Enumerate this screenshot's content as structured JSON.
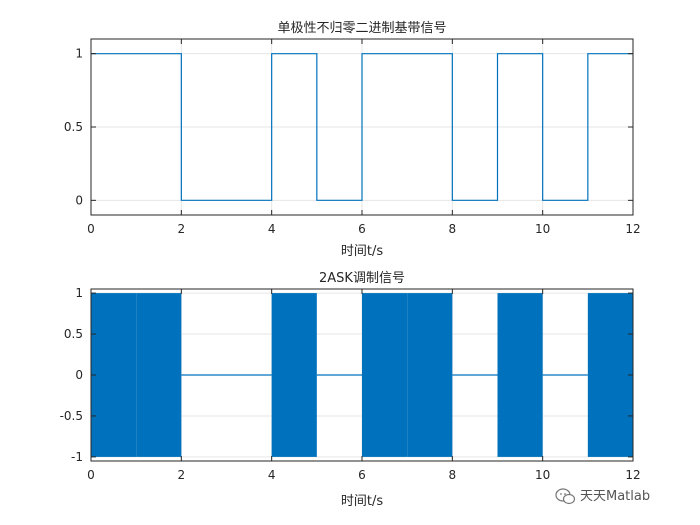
{
  "chart_data": [
    {
      "type": "line",
      "title": "单极性不归零二进制基带信号",
      "xlabel": "时间t/s",
      "ylabel": "",
      "xlim": [
        0,
        12
      ],
      "ylim": [
        -0.1,
        1.1
      ],
      "xticks": [
        0,
        2,
        4,
        6,
        8,
        10,
        12
      ],
      "xtick_labels": [
        "0",
        "2",
        "4",
        "6",
        "8",
        "10",
        "12"
      ],
      "yticks": [
        0,
        0.5,
        1
      ],
      "ytick_labels": [
        "0",
        "0.5",
        "1"
      ],
      "grid": true,
      "line_color": "#0072BD",
      "bits": [
        1,
        1,
        0,
        0,
        1,
        0,
        1,
        1,
        0,
        1,
        0,
        1
      ],
      "x": [
        0,
        2,
        2,
        4,
        4,
        5,
        5,
        6,
        6,
        8,
        8,
        9,
        9,
        10,
        10,
        11,
        11,
        12
      ],
      "y": [
        1,
        1,
        0,
        0,
        1,
        1,
        0,
        0,
        1,
        1,
        0,
        0,
        1,
        1,
        0,
        0,
        1,
        1
      ]
    },
    {
      "type": "area",
      "title": "2ASK调制信号",
      "xlabel": "时间t/s",
      "ylabel": "",
      "xlim": [
        0,
        12
      ],
      "ylim": [
        -1.05,
        1.05
      ],
      "xticks": [
        0,
        2,
        4,
        6,
        8,
        10,
        12
      ],
      "xtick_labels": [
        "0",
        "2",
        "4",
        "6",
        "8",
        "10",
        "12"
      ],
      "yticks": [
        -1,
        -0.5,
        0,
        0.5,
        1
      ],
      "ytick_labels": [
        "-1",
        "-0.5",
        "0",
        "0.5",
        "1"
      ],
      "grid": true,
      "line_color": "#0072BD",
      "bits": [
        1,
        1,
        0,
        0,
        1,
        0,
        1,
        1,
        0,
        1,
        0,
        1
      ],
      "amplitude": 1
    }
  ],
  "watermark": {
    "text": "天天Matlab",
    "icon": "wechat-icon"
  }
}
